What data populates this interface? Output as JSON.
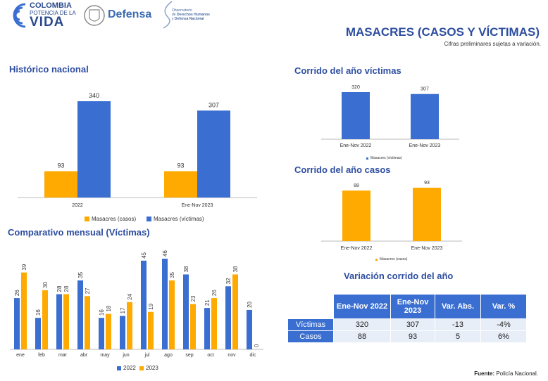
{
  "header": {
    "logo_line1": "COLOMBIA",
    "logo_line2": "POTENCIA DE LA",
    "logo_line3": "VIDA",
    "defensa": "Defensa",
    "obs_line1": "Observatorio",
    "obs_line2": "de",
    "obs_line3": "Derechos Humanos",
    "obs_line4": "y",
    "obs_line5": "Defensa Nacional",
    "title": "MASACRES (CASOS Y VÍCTIMAS)",
    "subtitle": "Cifras preliminares sujetas a variación."
  },
  "colors": {
    "casos": "#FFAA00",
    "victimas": "#3A6FD1",
    "heading": "#2E4EA0"
  },
  "sections": {
    "historico": "Histórico nacional",
    "mensual": "Comparativo mensual (Víctimas)",
    "corrido_victimas": "Corrido del año víctimas",
    "corrido_casos": "Corrido del año casos",
    "variacion": "Variación corrido del año"
  },
  "footer": {
    "label": "Fuente:",
    "source": "Policía Nacional."
  },
  "chart_data": [
    {
      "id": "historico",
      "type": "bar",
      "categories": [
        "2022",
        "Ene-Nov 2023"
      ],
      "series": [
        {
          "name": "Masacres (casos)",
          "values": [
            93,
            93
          ]
        },
        {
          "name": "Masacres (víctimas)",
          "values": [
            340,
            307
          ]
        }
      ],
      "ylim": [
        0,
        340
      ],
      "legend": "bottom"
    },
    {
      "id": "mensual",
      "type": "bar",
      "categories": [
        "ene",
        "feb",
        "mar",
        "abr",
        "may",
        "jun",
        "jul",
        "ago",
        "sep",
        "oct",
        "nov",
        "dic"
      ],
      "series": [
        {
          "name": "2022",
          "values": [
            26,
            16,
            28,
            35,
            16,
            17,
            45,
            46,
            38,
            21,
            32,
            20
          ]
        },
        {
          "name": "2023",
          "values": [
            39,
            30,
            28,
            27,
            18,
            24,
            19,
            35,
            23,
            26,
            38,
            0
          ]
        }
      ],
      "ylim": [
        0,
        46
      ],
      "legend": "bottom"
    },
    {
      "id": "corrido_victimas",
      "type": "bar",
      "categories": [
        "Ene-Nov 2022",
        "Ene-Nov 2023"
      ],
      "series": [
        {
          "name": "Masacres (víctimas)",
          "values": [
            320,
            307
          ]
        }
      ],
      "legend": "bottom"
    },
    {
      "id": "corrido_casos",
      "type": "bar",
      "categories": [
        "Ene-Nov 2022",
        "Ene-Nov 2023"
      ],
      "series": [
        {
          "name": "Masacres (casos)",
          "values": [
            88,
            93
          ]
        }
      ],
      "legend": "bottom"
    }
  ],
  "table": {
    "headers": [
      "Ene-Nov 2022",
      "Ene-Nov 2023",
      "Var. Abs.",
      "Var. %"
    ],
    "rows": [
      {
        "label": "Víctimas",
        "values": [
          "320",
          "307",
          "-13",
          "-4%"
        ]
      },
      {
        "label": "Casos",
        "values": [
          "88",
          "93",
          "5",
          "6%"
        ]
      }
    ]
  }
}
